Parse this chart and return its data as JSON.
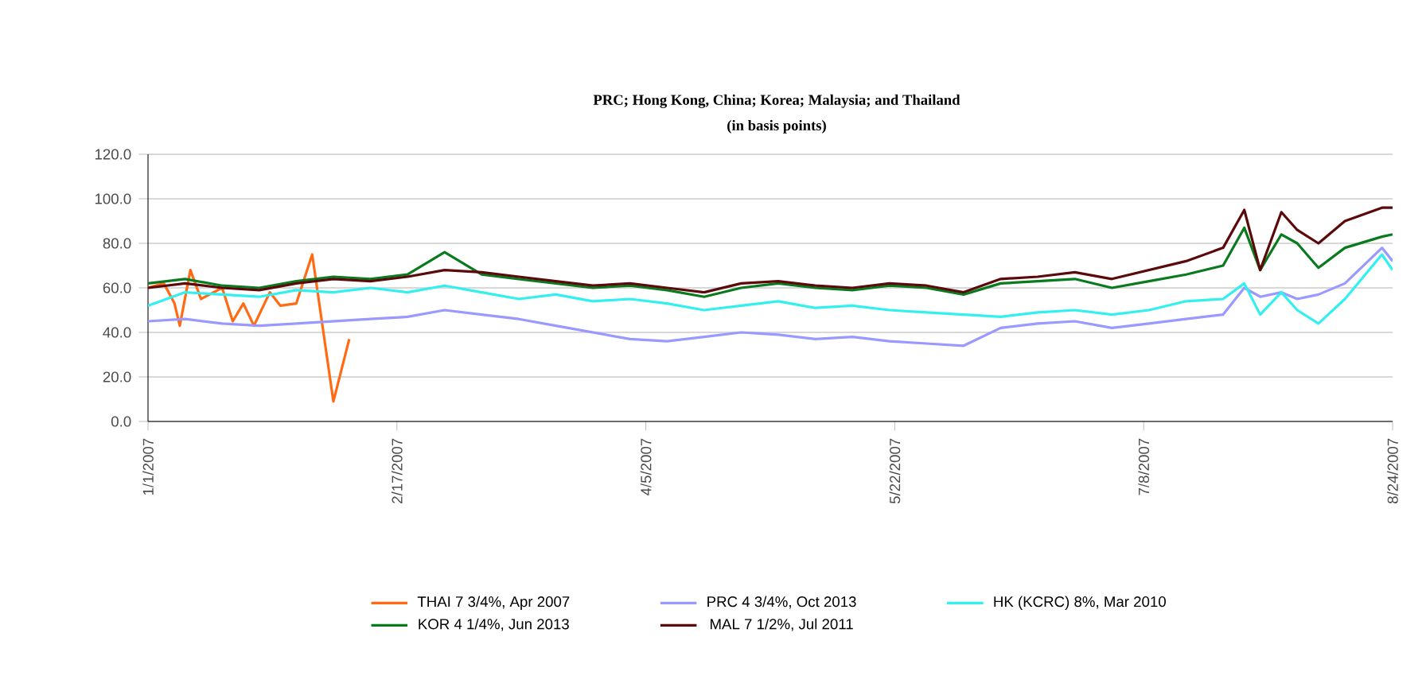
{
  "chart_data": {
    "type": "line",
    "title": "PRC; Hong Kong, China; Korea; Malaysia; and Thailand",
    "subtitle": "(in basis points)",
    "x": [
      "2007-01-01",
      "2007-01-08",
      "2007-01-15",
      "2007-01-22",
      "2007-01-29",
      "2007-02-05",
      "2007-02-12",
      "2007-02-19",
      "2007-02-26",
      "2007-03-05",
      "2007-03-12",
      "2007-03-19",
      "2007-03-26",
      "2007-04-02",
      "2007-04-09",
      "2007-04-16",
      "2007-04-23",
      "2007-04-30",
      "2007-05-07",
      "2007-05-14",
      "2007-05-21",
      "2007-05-28",
      "2007-06-04",
      "2007-06-11",
      "2007-06-18",
      "2007-06-25",
      "2007-07-02",
      "2007-07-09",
      "2007-07-16",
      "2007-07-23",
      "2007-07-27",
      "2007-07-30",
      "2007-08-03",
      "2007-08-06",
      "2007-08-10",
      "2007-08-15",
      "2007-08-22",
      "2007-08-24"
    ],
    "series": [
      {
        "name": "THAI 7 3/4%, Apr 2007",
        "color": "#ff6a13",
        "x": [
          "2007-01-01",
          "2007-01-04",
          "2007-01-06",
          "2007-01-07",
          "2007-01-09",
          "2007-01-11",
          "2007-01-15",
          "2007-01-17",
          "2007-01-19",
          "2007-01-21",
          "2007-01-24",
          "2007-01-26",
          "2007-01-29",
          "2007-02-01",
          "2007-02-05",
          "2007-02-08"
        ],
        "values": [
          60,
          62,
          53,
          43,
          68,
          55,
          60,
          45,
          53,
          43,
          58,
          52,
          53,
          75,
          9,
          37
        ]
      },
      {
        "name": "PRC 4 3/4%, Oct 2013",
        "color": "#9999ff",
        "values": [
          45,
          46,
          44,
          43,
          44,
          45,
          46,
          47,
          50,
          48,
          46,
          43,
          40,
          37,
          36,
          38,
          40,
          39,
          37,
          38,
          36,
          35,
          34,
          42,
          44,
          45,
          42,
          44,
          46,
          48,
          60,
          56,
          58,
          55,
          57,
          62,
          78,
          72
        ]
      },
      {
        "name": "HK (KCRC) 8%, Mar 2010",
        "color": "#33f0f0",
        "values": [
          52,
          58,
          57,
          56,
          59,
          58,
          60,
          58,
          61,
          58,
          55,
          57,
          54,
          55,
          53,
          50,
          52,
          54,
          51,
          52,
          50,
          49,
          48,
          47,
          49,
          50,
          48,
          50,
          54,
          55,
          62,
          48,
          58,
          50,
          44,
          55,
          75,
          68
        ]
      },
      {
        "name": "KOR 4 1/4%, Jun 2013",
        "color": "#0a7a1f",
        "values": [
          62,
          64,
          61,
          60,
          63,
          65,
          64,
          66,
          76,
          66,
          64,
          62,
          60,
          61,
          59,
          56,
          60,
          62,
          60,
          59,
          61,
          60,
          57,
          62,
          63,
          64,
          60,
          63,
          66,
          70,
          87,
          68,
          84,
          80,
          69,
          78,
          83,
          84
        ]
      },
      {
        "name": "MAL 7 1/2%, Jul 2011",
        "color": "#5a0a0a",
        "values": [
          60,
          62,
          60,
          59,
          62,
          64,
          63,
          65,
          68,
          67,
          65,
          63,
          61,
          62,
          60,
          58,
          62,
          63,
          61,
          60,
          62,
          61,
          58,
          64,
          65,
          67,
          64,
          68,
          72,
          78,
          95,
          68,
          94,
          86,
          80,
          90,
          96,
          96
        ]
      }
    ],
    "xlim": [
      "2007-01-01",
      "2007-08-24"
    ],
    "xticks": [
      {
        "value": "2007-01-01",
        "label": "1/1/2007"
      },
      {
        "value": "2007-02-17",
        "label": "2/17/2007"
      },
      {
        "value": "2007-04-05",
        "label": "4/5/2007"
      },
      {
        "value": "2007-05-22",
        "label": "5/22/2007"
      },
      {
        "value": "2007-07-08",
        "label": "7/8/2007"
      },
      {
        "value": "2007-08-24",
        "label": "8/24/2007"
      }
    ],
    "ylim": [
      0,
      120
    ],
    "yticks": [
      {
        "value": 0,
        "label": "0.0"
      },
      {
        "value": 20,
        "label": "20.0"
      },
      {
        "value": 40,
        "label": "40.0"
      },
      {
        "value": 60,
        "label": "60.0"
      },
      {
        "value": 80,
        "label": "80.0"
      },
      {
        "value": 100,
        "label": "100.0"
      },
      {
        "value": 120,
        "label": "120.0"
      }
    ],
    "grid": "y",
    "legend": "bottom"
  }
}
